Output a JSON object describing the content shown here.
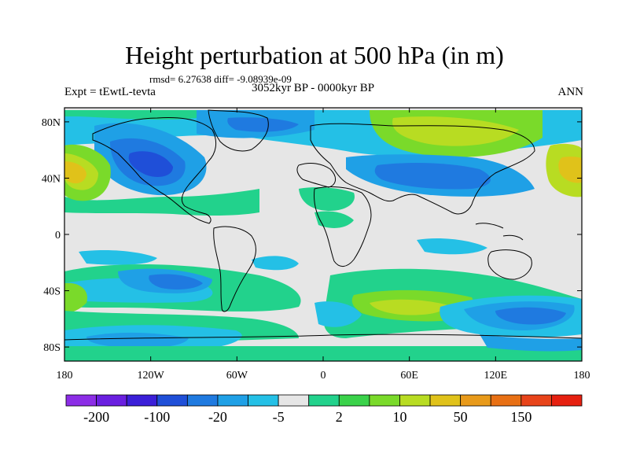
{
  "title": "Height perturbation at 500 hPa (in m)",
  "stats_line": "rmsd= 6.27638 diff= -9.08939e-09",
  "experiment": "Expt = tEwtL-tevta",
  "period": "3052kyr BP - 0000kyr BP",
  "season": "ANN",
  "map": {
    "projection": "cylindrical equidistant",
    "lon_range": [
      -180,
      180
    ],
    "lat_range": [
      -90,
      90
    ],
    "lat_tick_labels": [
      "80N",
      "40N",
      "0",
      "40S",
      "80S"
    ],
    "lon_tick_labels": [
      "180",
      "120W",
      "60W",
      "0",
      "60E",
      "120E",
      "180"
    ]
  },
  "colorbar": {
    "labels": [
      "-200",
      "-100",
      "-20",
      "-5",
      "2",
      "10",
      "50",
      "150"
    ],
    "colors": [
      "#8c2de6",
      "#6a1fe0",
      "#3b1fd8",
      "#1f4fd8",
      "#1f7ae0",
      "#1fa0e6",
      "#24c0e6",
      "#e6e6e6",
      "#22d28c",
      "#3ad24a",
      "#7ada2a",
      "#b8dc22",
      "#e0c21a",
      "#e89a1a",
      "#e87014",
      "#e8441a",
      "#e62010"
    ]
  }
}
